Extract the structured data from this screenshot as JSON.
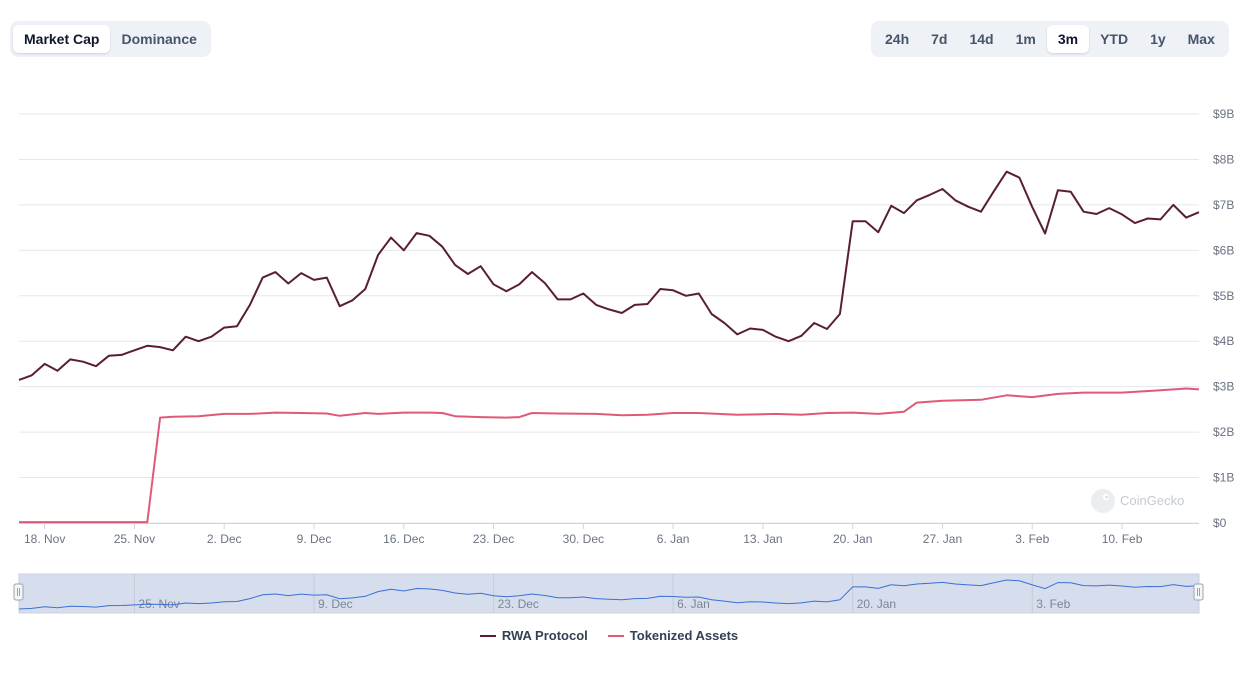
{
  "controls": {
    "metric_tabs": [
      "Market Cap",
      "Dominance"
    ],
    "metric_active": "Market Cap",
    "range_tabs": [
      "24h",
      "7d",
      "14d",
      "1m",
      "3m",
      "YTD",
      "1y",
      "Max"
    ],
    "range_active": "3m"
  },
  "watermark": "CoinGecko",
  "colors": {
    "rwa_protocol": "#5a1f2e",
    "tokenized_assets": "#de5a78",
    "navigator_line": "#3b6fd4",
    "navigator_fill": "#d6deee",
    "gridline": "#e5e7eb",
    "axis_text": "#6b7280"
  },
  "chart_data": {
    "type": "line",
    "title": "",
    "xlabel": "",
    "ylabel": "",
    "x_ticks": [
      "18. Nov",
      "25. Nov",
      "2. Dec",
      "9. Dec",
      "16. Dec",
      "23. Dec",
      "30. Dec",
      "6. Jan",
      "13. Jan",
      "20. Jan",
      "27. Jan",
      "3. Feb",
      "10. Feb"
    ],
    "y_ticks": [
      "$0",
      "$1B",
      "$2B",
      "$3B",
      "$4B",
      "$5B",
      "$6B",
      "$7B",
      "$8B",
      "$9B"
    ],
    "ylim": [
      0,
      9
    ],
    "y_unit": "billion USD",
    "x_start": "2024-11-16",
    "x_end": "2025-02-16",
    "grid": true,
    "legend_position": "bottom",
    "series": [
      {
        "name": "RWA Protocol",
        "x": [
          "2024-11-16",
          "2024-11-17",
          "2024-11-18",
          "2024-11-19",
          "2024-11-20",
          "2024-11-21",
          "2024-11-22",
          "2024-11-23",
          "2024-11-24",
          "2024-11-25",
          "2024-11-26",
          "2024-11-27",
          "2024-11-28",
          "2024-11-29",
          "2024-11-30",
          "2024-12-01",
          "2024-12-02",
          "2024-12-03",
          "2024-12-04",
          "2024-12-05",
          "2024-12-06",
          "2024-12-07",
          "2024-12-08",
          "2024-12-09",
          "2024-12-10",
          "2024-12-11",
          "2024-12-12",
          "2024-12-13",
          "2024-12-14",
          "2024-12-15",
          "2024-12-16",
          "2024-12-17",
          "2024-12-18",
          "2024-12-19",
          "2024-12-20",
          "2024-12-21",
          "2024-12-22",
          "2024-12-23",
          "2024-12-24",
          "2024-12-25",
          "2024-12-26",
          "2024-12-27",
          "2024-12-28",
          "2024-12-29",
          "2024-12-30",
          "2024-12-31",
          "2025-01-01",
          "2025-01-02",
          "2025-01-03",
          "2025-01-04",
          "2025-01-05",
          "2025-01-06",
          "2025-01-07",
          "2025-01-08",
          "2025-01-09",
          "2025-01-10",
          "2025-01-11",
          "2025-01-12",
          "2025-01-13",
          "2025-01-14",
          "2025-01-15",
          "2025-01-16",
          "2025-01-17",
          "2025-01-18",
          "2025-01-19",
          "2025-01-20",
          "2025-01-21",
          "2025-01-22",
          "2025-01-23",
          "2025-01-24",
          "2025-01-25",
          "2025-01-26",
          "2025-01-27",
          "2025-01-28",
          "2025-01-29",
          "2025-01-30",
          "2025-01-31",
          "2025-02-01",
          "2025-02-02",
          "2025-02-03",
          "2025-02-04",
          "2025-02-05",
          "2025-02-06",
          "2025-02-07",
          "2025-02-08",
          "2025-02-09",
          "2025-02-10",
          "2025-02-11",
          "2025-02-12",
          "2025-02-13",
          "2025-02-14",
          "2025-02-15",
          "2025-02-16"
        ],
        "values": [
          3.15,
          3.25,
          3.5,
          3.35,
          3.6,
          3.55,
          3.45,
          3.68,
          3.7,
          3.8,
          3.9,
          3.87,
          3.8,
          4.1,
          4.0,
          4.1,
          4.3,
          4.33,
          4.8,
          5.4,
          5.52,
          5.27,
          5.5,
          5.35,
          5.4,
          4.77,
          4.9,
          5.15,
          5.9,
          6.28,
          6.0,
          6.38,
          6.32,
          6.08,
          5.68,
          5.48,
          5.65,
          5.25,
          5.1,
          5.25,
          5.52,
          5.28,
          4.92,
          4.92,
          5.05,
          4.8,
          4.7,
          4.62,
          4.8,
          4.82,
          5.15,
          5.12,
          5.0,
          5.05,
          4.6,
          4.4,
          4.15,
          4.28,
          4.25,
          4.1,
          4.0,
          4.12,
          4.4,
          4.27,
          4.6,
          6.64,
          6.64,
          6.4,
          6.98,
          6.82,
          7.1,
          7.22,
          7.35,
          7.1,
          6.96,
          6.85,
          7.3,
          7.73,
          7.6,
          6.95,
          6.37,
          7.32,
          7.29,
          6.85,
          6.8,
          6.93,
          6.79,
          6.6,
          6.7,
          6.68,
          7.0,
          6.72,
          6.84
        ]
      },
      {
        "name": "Tokenized Assets",
        "x": [
          "2024-11-16",
          "2024-11-26",
          "2024-11-27",
          "2024-11-28",
          "2024-11-30",
          "2024-12-02",
          "2024-12-04",
          "2024-12-06",
          "2024-12-08",
          "2024-12-10",
          "2024-12-11",
          "2024-12-13",
          "2024-12-14",
          "2024-12-16",
          "2024-12-18",
          "2024-12-19",
          "2024-12-20",
          "2024-12-22",
          "2024-12-24",
          "2024-12-25",
          "2024-12-26",
          "2024-12-28",
          "2024-12-31",
          "2025-01-02",
          "2025-01-04",
          "2025-01-06",
          "2025-01-08",
          "2025-01-11",
          "2025-01-14",
          "2025-01-16",
          "2025-01-18",
          "2025-01-20",
          "2025-01-22",
          "2025-01-24",
          "2025-01-25",
          "2025-01-27",
          "2025-01-30",
          "2025-02-01",
          "2025-02-03",
          "2025-02-05",
          "2025-02-07",
          "2025-02-10",
          "2025-02-13",
          "2025-02-15",
          "2025-02-16"
        ],
        "values": [
          0.02,
          0.02,
          2.32,
          2.34,
          2.35,
          2.4,
          2.4,
          2.43,
          2.42,
          2.41,
          2.36,
          2.42,
          2.4,
          2.43,
          2.43,
          2.42,
          2.35,
          2.33,
          2.32,
          2.33,
          2.42,
          2.41,
          2.4,
          2.37,
          2.38,
          2.42,
          2.42,
          2.38,
          2.4,
          2.38,
          2.42,
          2.43,
          2.4,
          2.45,
          2.65,
          2.69,
          2.71,
          2.81,
          2.77,
          2.84,
          2.87,
          2.87,
          2.92,
          2.96,
          2.94
        ]
      }
    ]
  },
  "navigator": {
    "tick_labels": [
      "25. Nov",
      "9. Dec",
      "23. Dec",
      "6. Jan",
      "20. Jan",
      "3. Feb"
    ]
  }
}
